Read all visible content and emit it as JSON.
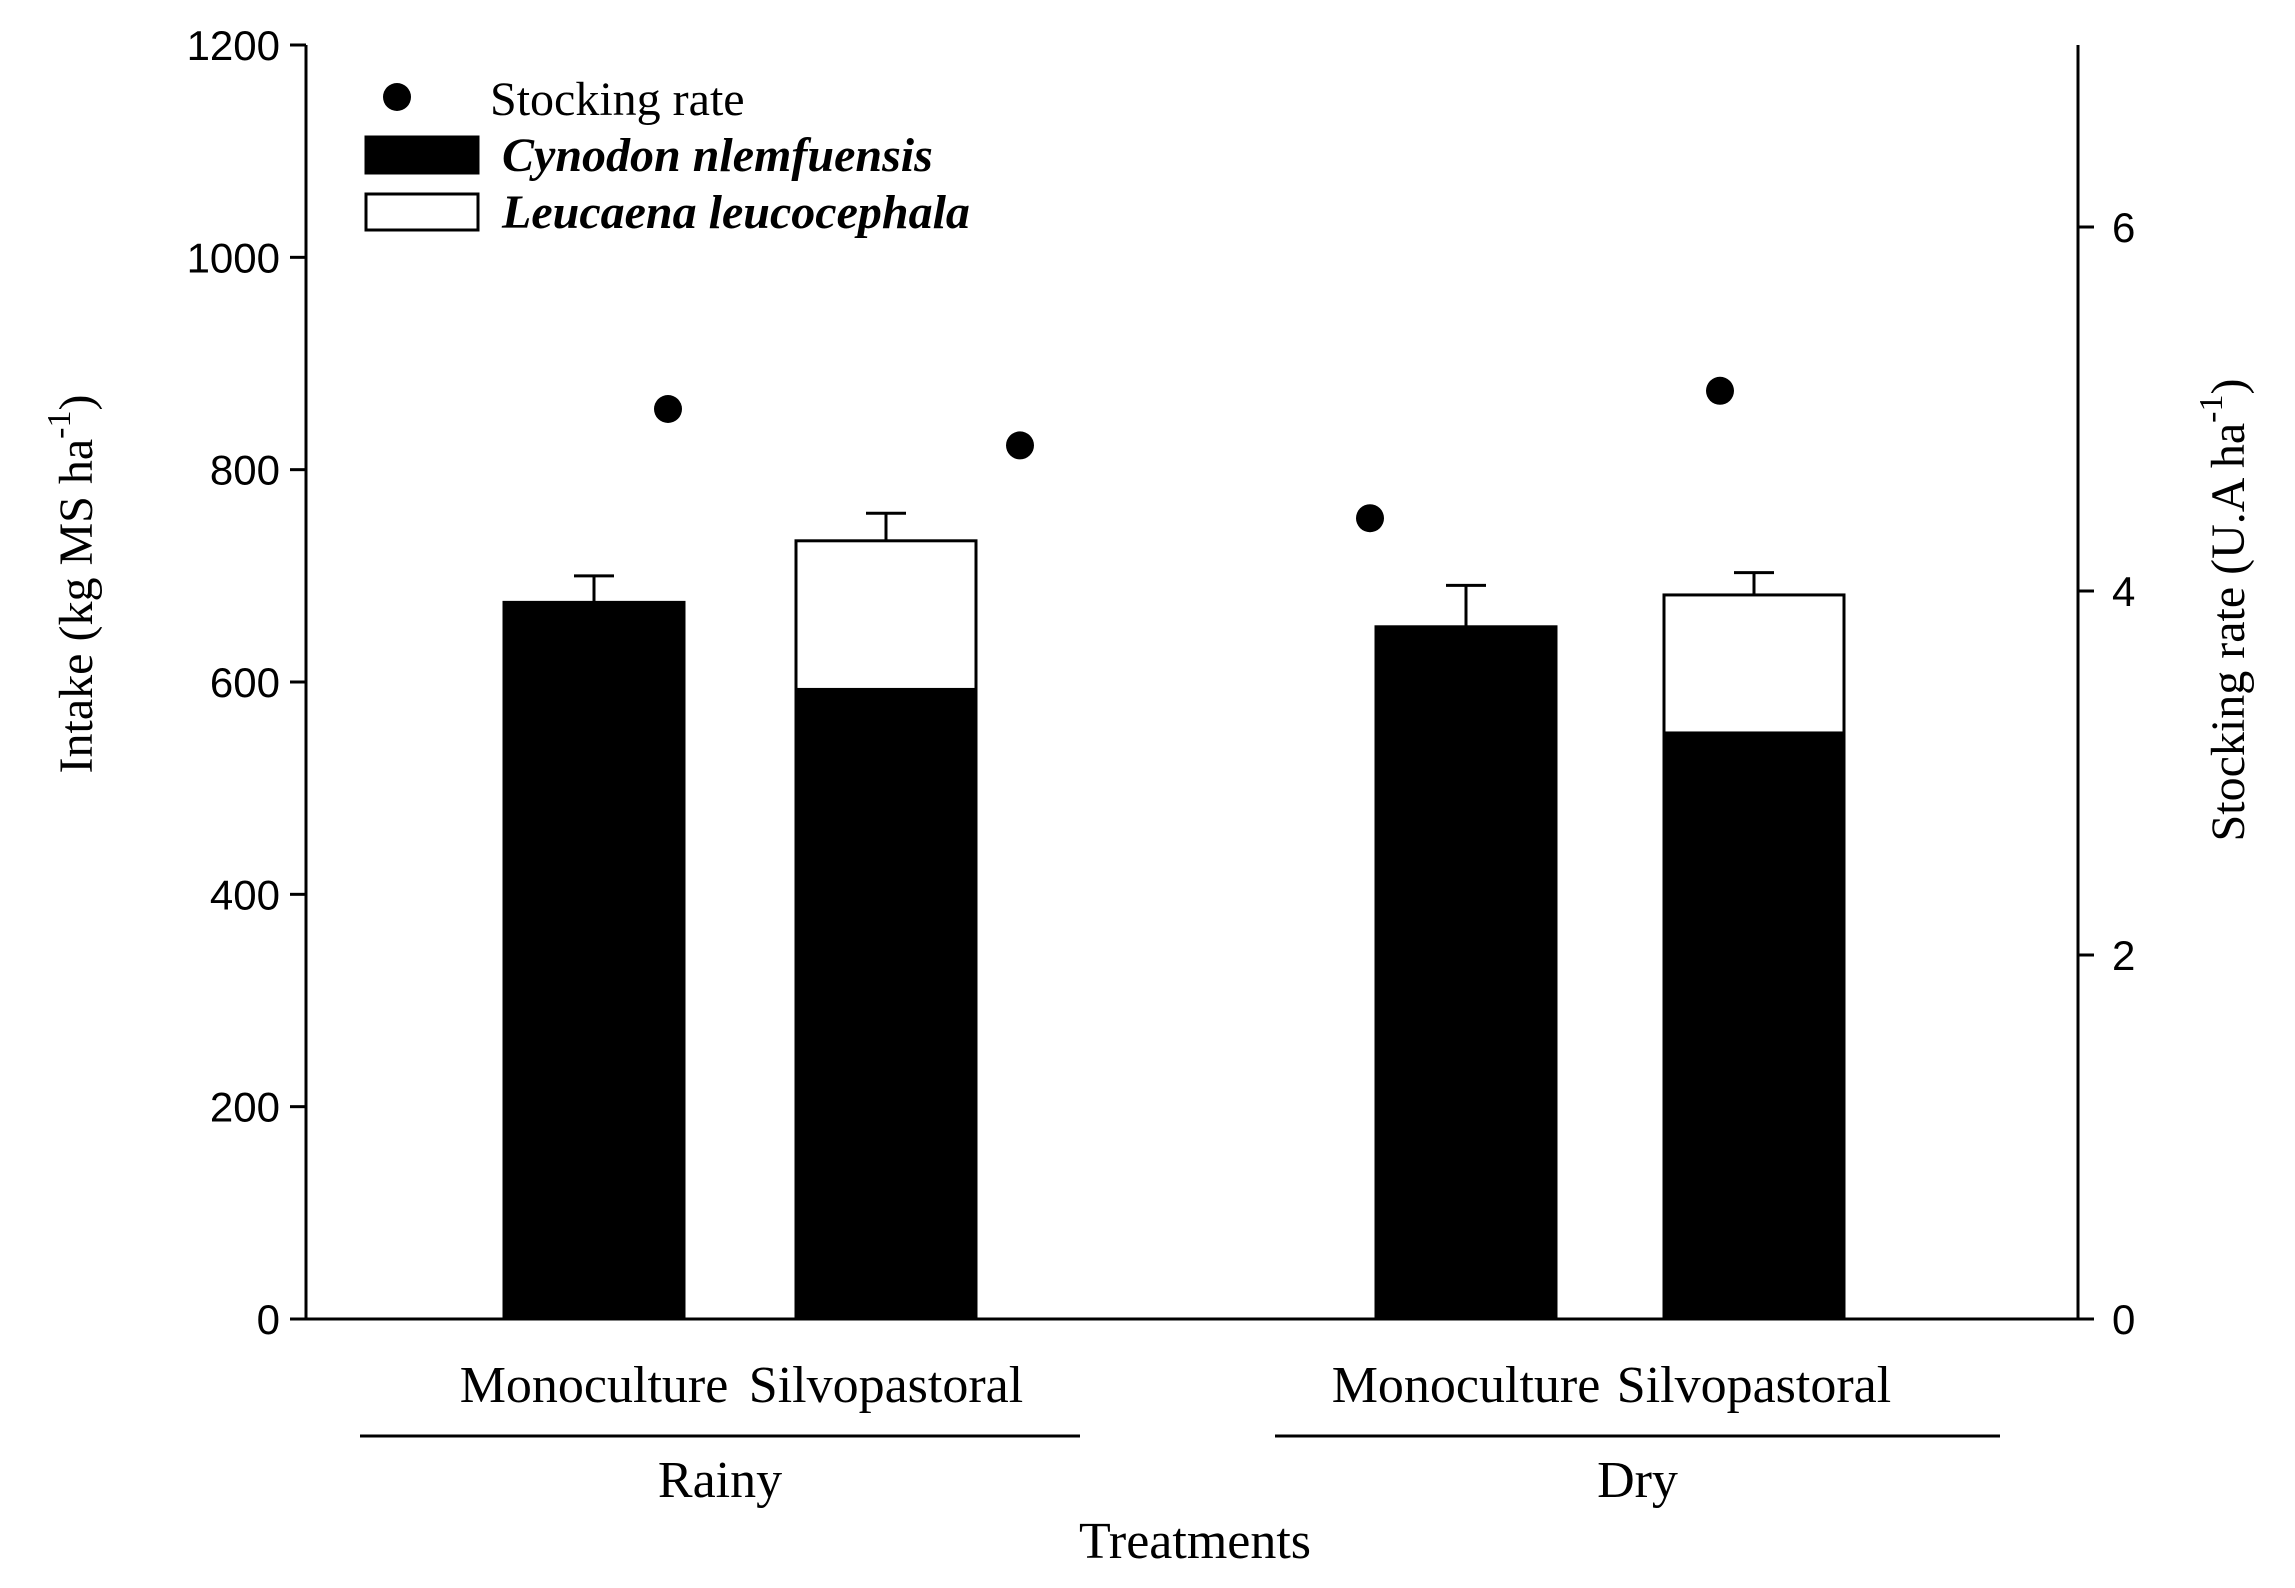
{
  "chart_data": {
    "type": "bar",
    "stacked": true,
    "ylabel_left": "Intake (kg MS ha",
    "ylabel_left_sup": "-1",
    "ylabel_left_close": ")",
    "ylabel_right": "Stocking rate (U.A ha",
    "ylabel_right_sup": "-1",
    "ylabel_right_close": ")",
    "xlabel": "Treatments",
    "ylim_left": [
      0,
      1200
    ],
    "ylim_right": [
      0,
      7
    ],
    "yticks_left": [
      0,
      200,
      400,
      600,
      800,
      1000,
      1200
    ],
    "yticks_right": [
      0,
      2,
      4,
      6
    ],
    "groups": [
      {
        "label": "Rainy"
      },
      {
        "label": "Dry"
      }
    ],
    "bars": [
      {
        "label": "Monoculture",
        "group": "Rainy",
        "cynodon": 675,
        "leucaena": 0,
        "error": 25,
        "stocking_rate": 5.0
      },
      {
        "label": "Silvopastoral",
        "group": "Rainy",
        "cynodon": 593,
        "leucaena": 140,
        "error": 26,
        "stocking_rate": 4.8
      },
      {
        "label": "Monoculture",
        "group": "Dry",
        "cynodon": 652,
        "leucaena": 0,
        "error": 39,
        "stocking_rate": 4.4
      },
      {
        "label": "Silvopastoral",
        "group": "Dry",
        "cynodon": 552,
        "leucaena": 130,
        "error": 21,
        "stocking_rate": 5.1
      }
    ],
    "legend": {
      "position": "top-left",
      "items": [
        {
          "name": "Stocking rate",
          "marker": "circle",
          "italic": false
        },
        {
          "name": "Cynodon nlemfuensis",
          "marker": "black-box",
          "italic": true
        },
        {
          "name": "Leucaena leucocephala",
          "marker": "white-box",
          "italic": true
        }
      ]
    },
    "colors": {
      "cynodon": "#000000",
      "leucaena": "#ffffff",
      "axis": "#000000"
    }
  }
}
